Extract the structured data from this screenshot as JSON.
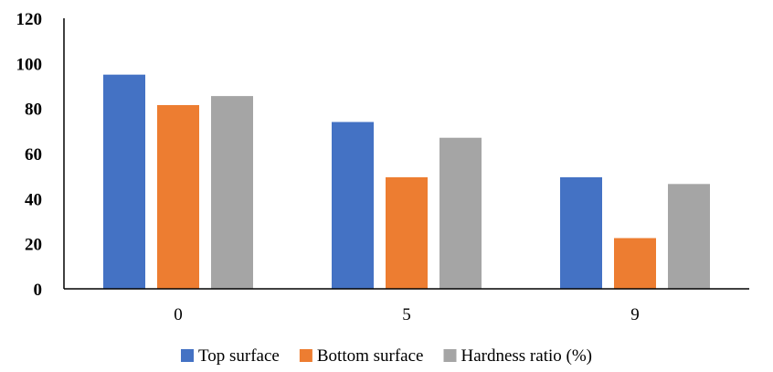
{
  "chart_data": {
    "type": "bar",
    "categories": [
      "0",
      "5",
      "9"
    ],
    "series": [
      {
        "name": "Top surface",
        "values": [
          95,
          74,
          49.5
        ],
        "color": "#4472C4"
      },
      {
        "name": "Bottom surface",
        "values": [
          81.5,
          49.5,
          22.5
        ],
        "color": "#ED7D31"
      },
      {
        "name": "Hardness ratio (%)",
        "values": [
          85.5,
          67,
          46.5
        ],
        "color": "#A5A5A5"
      }
    ],
    "ylim": [
      0,
      120
    ],
    "yticks": [
      "0",
      "20",
      "40",
      "60",
      "80",
      "100",
      "120"
    ],
    "grid": false,
    "legend_position": "bottom"
  }
}
